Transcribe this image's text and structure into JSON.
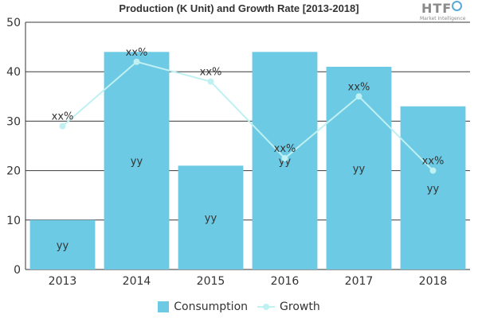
{
  "chart_data": {
    "type": "bar",
    "title": "Production (K Unit) and Growth Rate [2013-2018]",
    "categories": [
      "2013",
      "2014",
      "2015",
      "2016",
      "2017",
      "2018"
    ],
    "ylim": [
      0,
      50
    ],
    "yticks": [
      0,
      10,
      20,
      30,
      40,
      50
    ],
    "grid": true,
    "legend_position": "bottom",
    "series": [
      {
        "name": "Consumption",
        "type": "bar",
        "values": [
          10,
          44,
          21,
          44,
          41,
          33
        ],
        "labels": [
          "yy",
          "yy",
          "yy",
          "yy",
          "yy",
          "yy"
        ],
        "color": "#6ccae4"
      },
      {
        "name": "Growth",
        "type": "line",
        "values": [
          29,
          42,
          38,
          22.5,
          35,
          20
        ],
        "labels": [
          "xx%",
          "xx%",
          "xx%",
          "xx%",
          "xx%",
          "xx%"
        ],
        "color": "#bff0f2"
      }
    ]
  },
  "logo": {
    "mark": "HTF",
    "sub": "Market Intelligence"
  }
}
